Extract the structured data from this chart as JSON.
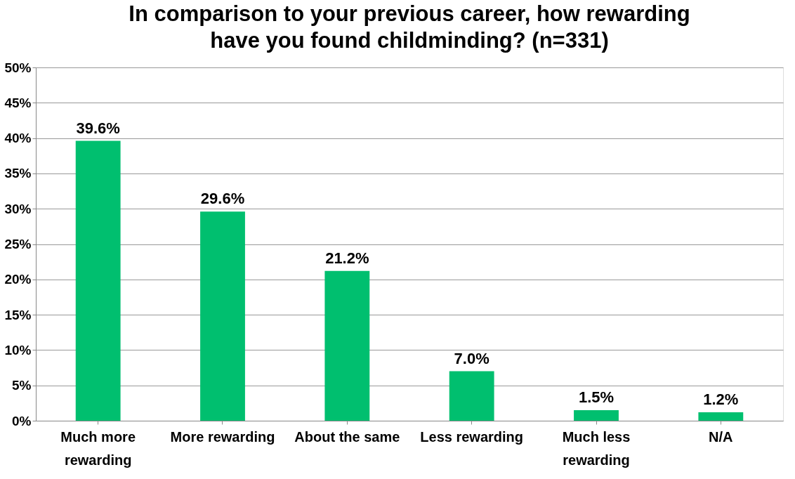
{
  "chart_data": {
    "type": "bar",
    "title": "In comparison to your previous career, how rewarding have you found childminding? (n=331)",
    "categories": [
      "Much more rewarding",
      "More rewarding",
      "About the same",
      "Less rewarding",
      "Much less rewarding",
      "N/A"
    ],
    "values": [
      39.6,
      29.6,
      21.2,
      7.0,
      1.5,
      1.2
    ],
    "value_labels": [
      "39.6%",
      "29.6%",
      "21.2%",
      "7.0%",
      "1.5%",
      "1.2%"
    ],
    "color": "#00bf6f",
    "ylim": [
      0,
      50
    ],
    "yticks": [
      {
        "value": 0,
        "label": "0%"
      },
      {
        "value": 5,
        "label": "5%"
      },
      {
        "value": 10,
        "label": "10%"
      },
      {
        "value": 15,
        "label": "15%"
      },
      {
        "value": 20,
        "label": "20%"
      },
      {
        "value": 25,
        "label": "25%"
      },
      {
        "value": 30,
        "label": "30%"
      },
      {
        "value": 35,
        "label": "35%"
      },
      {
        "value": 40,
        "label": "40%"
      },
      {
        "value": 45,
        "label": "45%"
      },
      {
        "value": 50,
        "label": "50%"
      }
    ],
    "grid": "y"
  }
}
